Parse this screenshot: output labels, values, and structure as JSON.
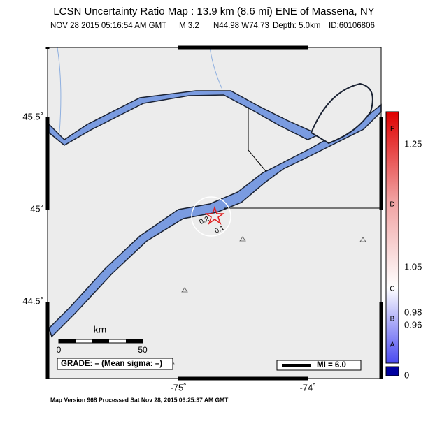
{
  "header": {
    "title": "LCSN Uncertainty Ratio Map : 13.9 km (8.6 mi) ENE of Massena, NY",
    "date": "NOV 28 2015 05:16:54 AM GMT",
    "magnitude": "M 3.2",
    "location": "N44.98 W74.73",
    "depth": "Depth: 5.0km",
    "id": "ID:60106806"
  },
  "map": {
    "lat_labels": [
      "45.5˚",
      "45˚",
      "44.5˚"
    ],
    "lon_labels": [
      "-75˚",
      "-74˚"
    ],
    "contour_labels": [
      "0.2",
      "0.1"
    ]
  },
  "colorbar": {
    "ticks": [
      "1.25",
      "1.05",
      "0.98",
      "0.96",
      "0"
    ],
    "letters": [
      "F",
      "D",
      "C",
      "B",
      "A"
    ]
  },
  "scale": {
    "unit": "km",
    "labels": [
      "0",
      "50"
    ]
  },
  "grade": "GRADE: – (Mean sigma: –)",
  "mi_legend": "MI = 6.0",
  "footer": "Map Version 968 Processed Sat Nov 28, 2015 06:25:37 AM GMT"
}
